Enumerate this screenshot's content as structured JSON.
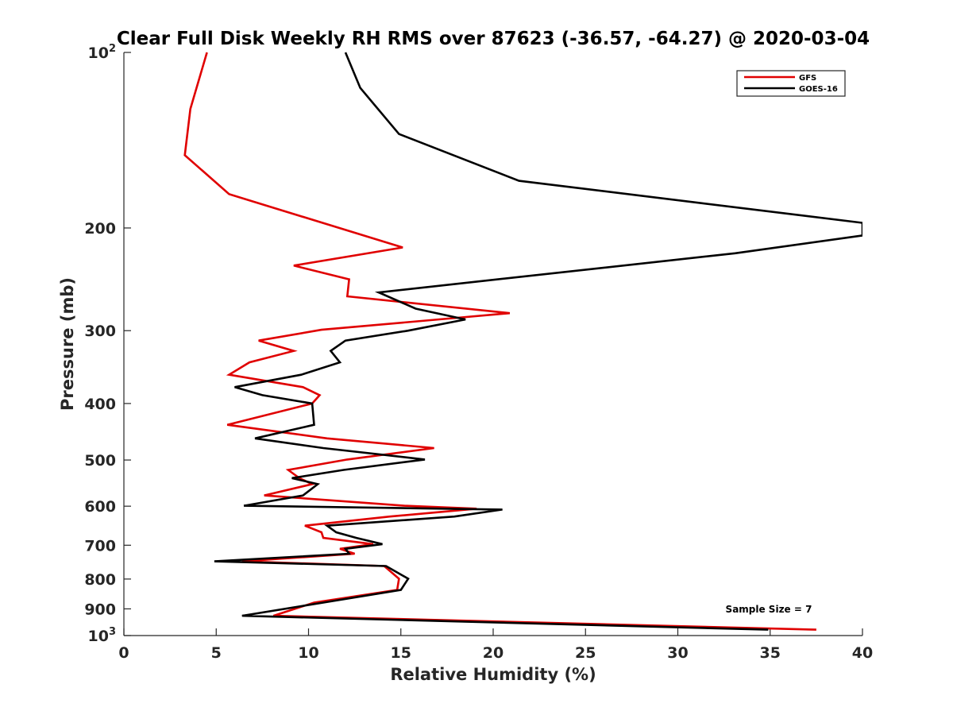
{
  "chart_data": {
    "type": "line",
    "title": "Clear Full Disk Weekly RH RMS over 87623 (-36.57, -64.27) @ 2020-03-04",
    "xlabel": "Relative Humidity (%)",
    "ylabel": "Pressure (mb)",
    "xlim": [
      0,
      40
    ],
    "ylim": [
      100,
      1000
    ],
    "y_scale": "log",
    "y_reversed": true,
    "grid": false,
    "legend_position": "top-right",
    "x_ticks": [
      {
        "value": 0,
        "label": "0"
      },
      {
        "value": 5,
        "label": "5"
      },
      {
        "value": 10,
        "label": "10"
      },
      {
        "value": 15,
        "label": "15"
      },
      {
        "value": 20,
        "label": "20"
      },
      {
        "value": 25,
        "label": "25"
      },
      {
        "value": 30,
        "label": "30"
      },
      {
        "value": 35,
        "label": "35"
      },
      {
        "value": 40,
        "label": "40"
      }
    ],
    "y_ticks": [
      {
        "value": 100,
        "base": "10",
        "exp": "2"
      },
      {
        "value": 200,
        "label": "200"
      },
      {
        "value": 300,
        "label": "300"
      },
      {
        "value": 400,
        "label": "400"
      },
      {
        "value": 500,
        "label": "500"
      },
      {
        "value": 600,
        "label": "600"
      },
      {
        "value": 700,
        "label": "700"
      },
      {
        "value": 800,
        "label": "800"
      },
      {
        "value": 900,
        "label": "900"
      },
      {
        "value": 1000,
        "base": "10",
        "exp": "3"
      }
    ],
    "series": [
      {
        "name": "GFS",
        "color": "#e00000",
        "points": [
          [
            4.5,
            100
          ],
          [
            3.6,
            125
          ],
          [
            3.3,
            150
          ],
          [
            5.7,
            175
          ],
          [
            15.1,
            216
          ],
          [
            9.2,
            232
          ],
          [
            12.2,
            245
          ],
          [
            12.1,
            262
          ],
          [
            20.9,
            280
          ],
          [
            10.7,
            299
          ],
          [
            7.3,
            312
          ],
          [
            9.2,
            325
          ],
          [
            6.8,
            340
          ],
          [
            5.7,
            357
          ],
          [
            9.7,
            375
          ],
          [
            10.6,
            387
          ],
          [
            10.2,
            400
          ],
          [
            5.6,
            435
          ],
          [
            11.0,
            459
          ],
          [
            16.8,
            477
          ],
          [
            12.1,
            499
          ],
          [
            8.9,
            520
          ],
          [
            9.5,
            537
          ],
          [
            10.2,
            550
          ],
          [
            7.6,
            575
          ],
          [
            15.2,
            599
          ],
          [
            19.1,
            606
          ],
          [
            14.4,
            625
          ],
          [
            9.8,
            648
          ],
          [
            10.7,
            665
          ],
          [
            10.8,
            680
          ],
          [
            13.5,
            697
          ],
          [
            11.7,
            710
          ],
          [
            12.5,
            724
          ],
          [
            6.4,
            746
          ],
          [
            14.1,
            760
          ],
          [
            14.9,
            799
          ],
          [
            14.8,
            835
          ],
          [
            10.3,
            878
          ],
          [
            8.1,
            925
          ],
          [
            37.5,
            977
          ]
        ]
      },
      {
        "name": "GOES-16",
        "color": "#000000",
        "points": [
          [
            12.0,
            100
          ],
          [
            12.8,
            115
          ],
          [
            14.9,
            138
          ],
          [
            21.4,
            166
          ],
          [
            40.0,
            196
          ],
          [
            40.0,
            206
          ],
          [
            33.1,
            221
          ],
          [
            13.8,
            258
          ],
          [
            15.8,
            275
          ],
          [
            18.5,
            287
          ],
          [
            15.4,
            300
          ],
          [
            12.0,
            312
          ],
          [
            11.2,
            325
          ],
          [
            11.7,
            340
          ],
          [
            9.6,
            357
          ],
          [
            6.0,
            375
          ],
          [
            7.5,
            387
          ],
          [
            10.2,
            400
          ],
          [
            10.3,
            435
          ],
          [
            7.1,
            459
          ],
          [
            10.8,
            477
          ],
          [
            16.3,
            499
          ],
          [
            11.9,
            520
          ],
          [
            9.1,
            537
          ],
          [
            10.5,
            550
          ],
          [
            9.7,
            575
          ],
          [
            6.5,
            599
          ],
          [
            20.5,
            608
          ],
          [
            17.9,
            625
          ],
          [
            11.0,
            648
          ],
          [
            11.5,
            665
          ],
          [
            12.6,
            680
          ],
          [
            14.0,
            697
          ],
          [
            12.0,
            710
          ],
          [
            12.2,
            724
          ],
          [
            4.9,
            746
          ],
          [
            14.2,
            760
          ],
          [
            15.4,
            799
          ],
          [
            15.0,
            835
          ],
          [
            10.8,
            878
          ],
          [
            6.4,
            925
          ],
          [
            34.9,
            977
          ]
        ]
      }
    ],
    "annotation": "Sample Size = 7"
  }
}
